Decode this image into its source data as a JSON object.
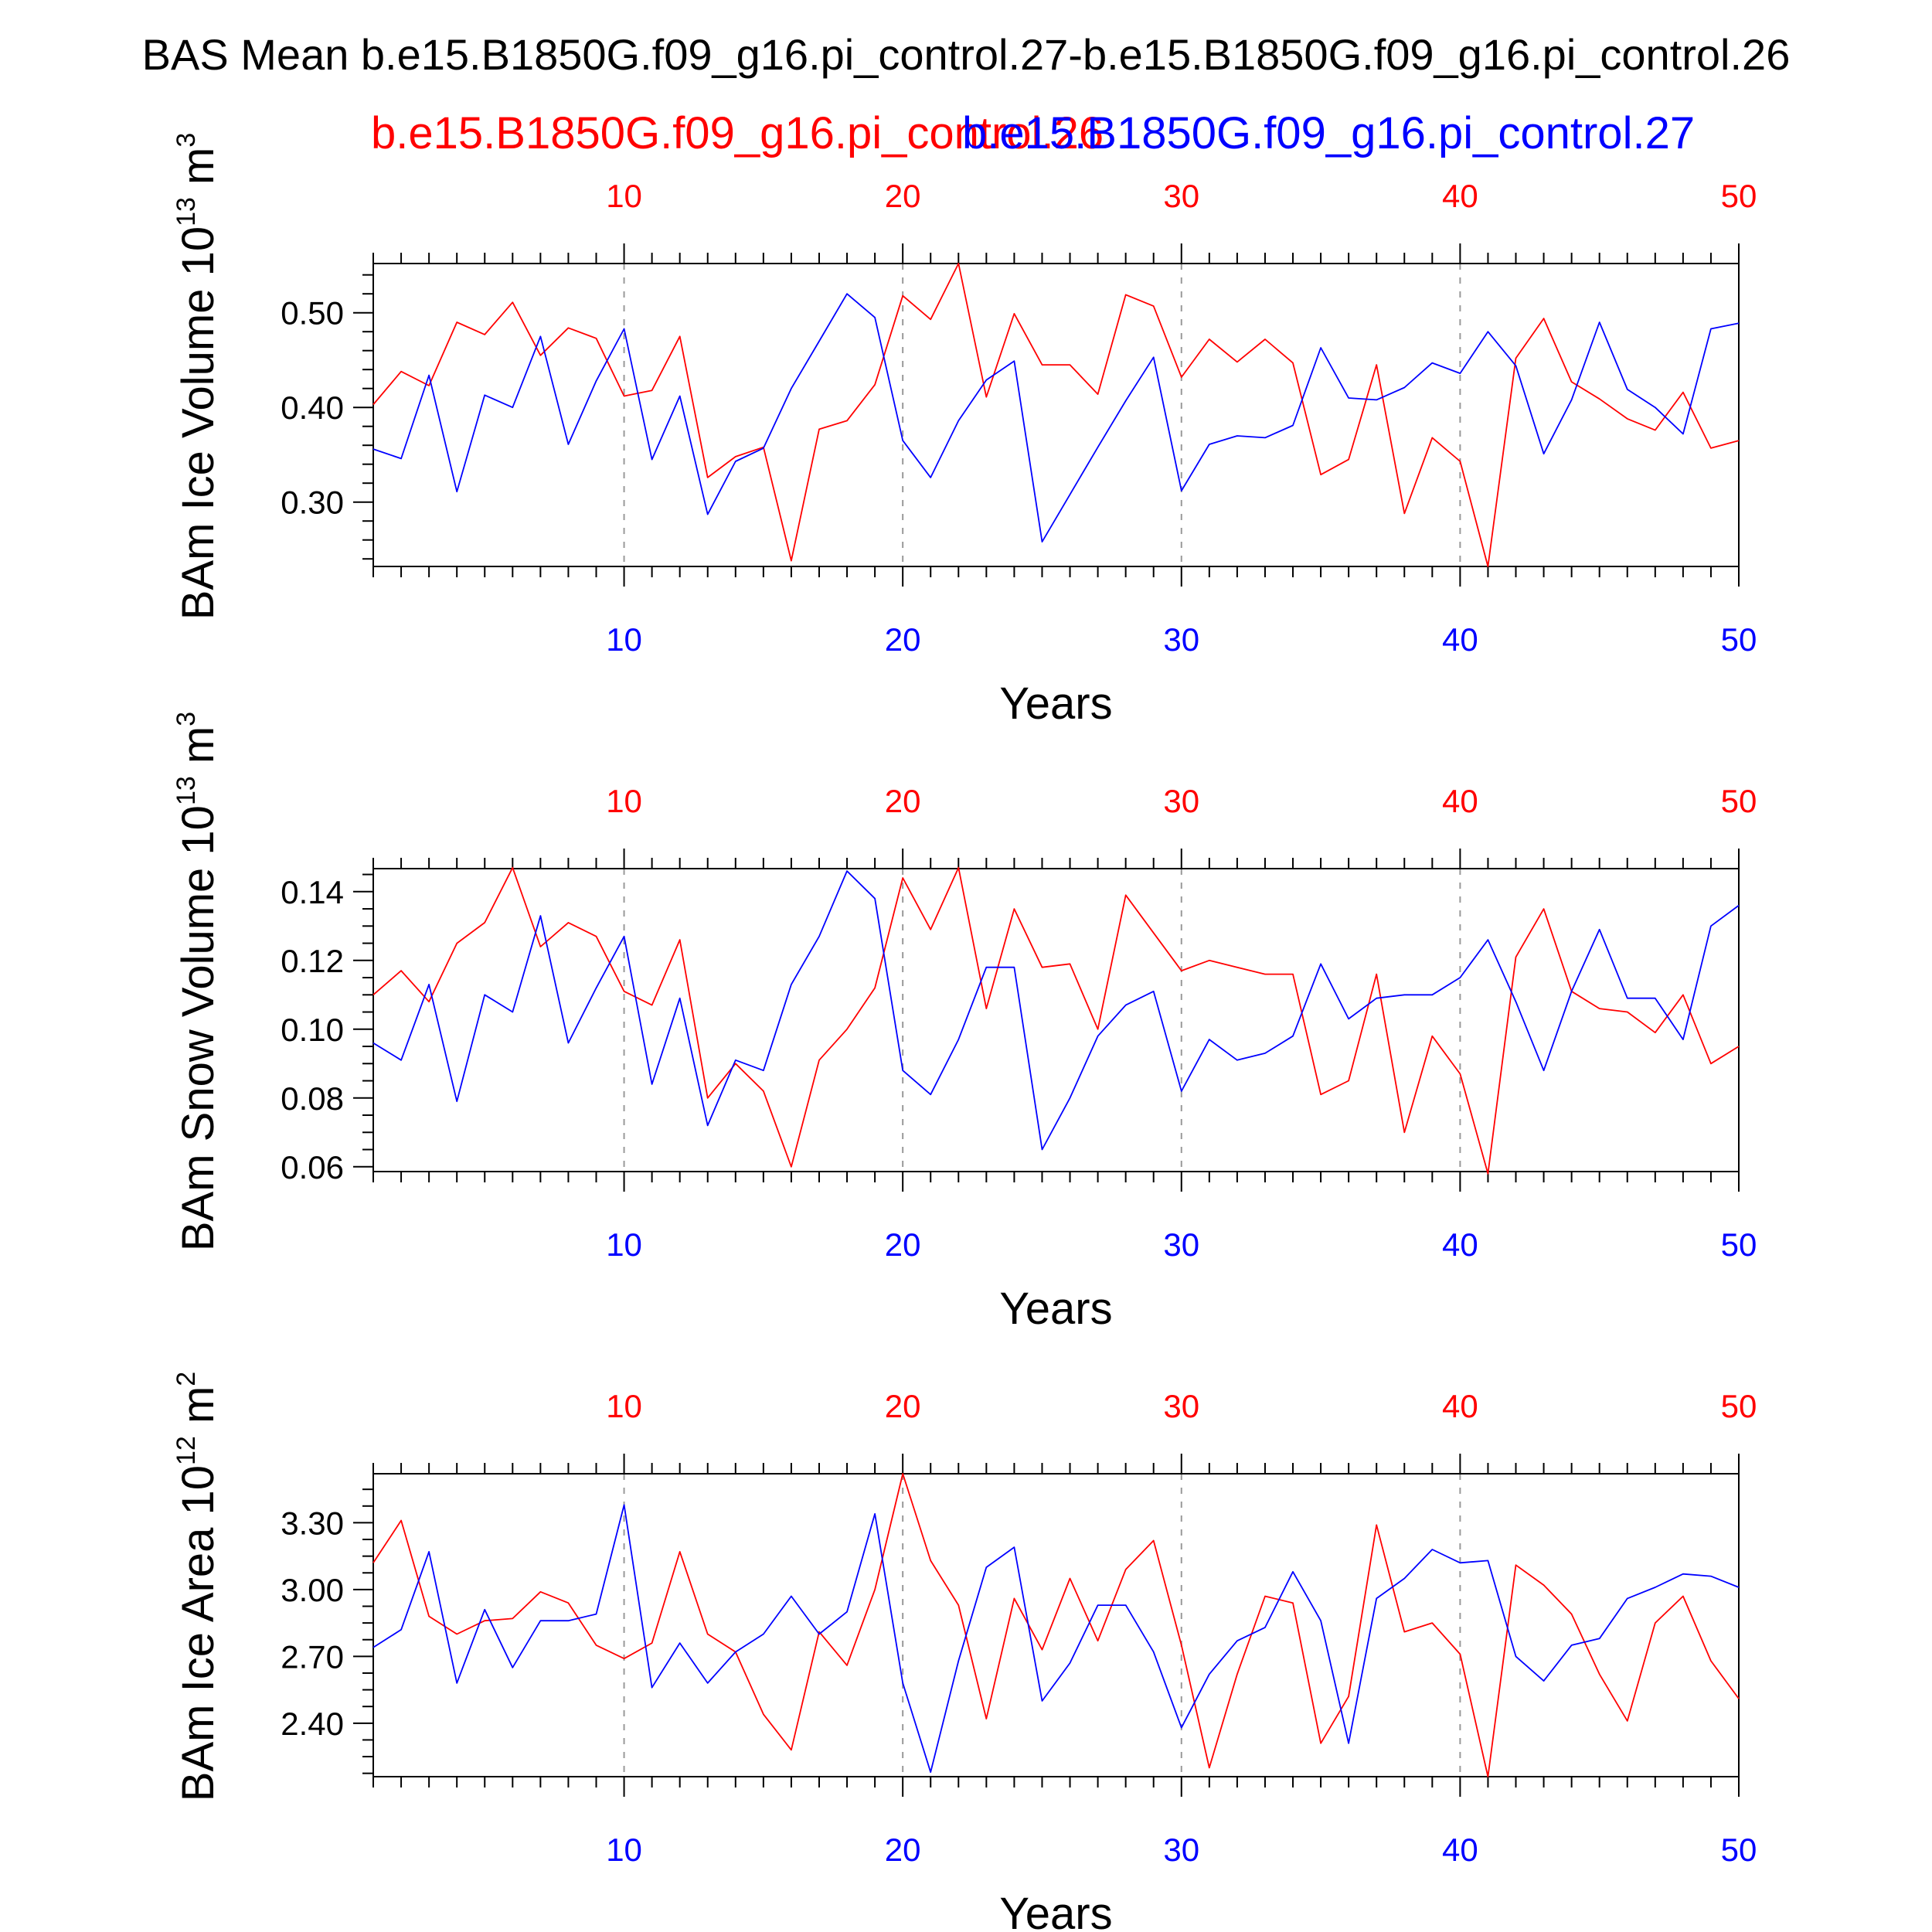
{
  "title": "BAS Mean b.e15.B1850G.f09_g16.pi_control.27-b.e15.B1850G.f09_g16.pi_control.26",
  "legend": {
    "red_label": "b.e15.B1850G.f09_g16.pi_control.26",
    "blue_label": "b.e15.B1850G.f09_g16.pi_control.27"
  },
  "colors": {
    "red": "#ff0000",
    "blue": "#0000ff",
    "axis": "#000000",
    "grid": "#999999"
  },
  "chart_data": [
    {
      "type": "line",
      "ylabel_prefix": "BAm Ice Volume 10",
      "ylabel_exp": "13",
      "ylabel_unit": " m",
      "ylabel_unit_exp": "3",
      "xlabel": "Years",
      "xlim": [
        1,
        50
      ],
      "ylim": [
        0.232,
        0.552
      ],
      "xticks": [
        10,
        20,
        30,
        40,
        50
      ],
      "yticks": [
        0.3,
        0.4,
        0.5
      ],
      "ytick_labels": [
        "0.30",
        "0.40",
        "0.50"
      ],
      "yminor_step": 0.02,
      "grid": "vertical dashed at major x ticks",
      "series": [
        {
          "name": "b.e15.B1850G.f09_g16.pi_control.26",
          "color": "#ff0000",
          "values": [
            0.403,
            0.438,
            0.423,
            0.49,
            0.477,
            0.511,
            0.455,
            0.484,
            0.473,
            0.412,
            0.418,
            0.475,
            0.326,
            0.348,
            0.358,
            0.238,
            0.377,
            0.386,
            0.424,
            0.518,
            0.493,
            0.552,
            0.411,
            0.499,
            0.445,
            0.445,
            0.414,
            0.519,
            0.507,
            0.432,
            0.472,
            0.448,
            0.472,
            0.447,
            0.329,
            0.345,
            0.445,
            0.288,
            0.368,
            0.343,
            0.232,
            0.452,
            0.494,
            0.427,
            0.409,
            0.388,
            0.376,
            0.416,
            0.357,
            0.365
          ]
        },
        {
          "name": "b.e15.B1850G.f09_g16.pi_control.27",
          "color": "#0000ff",
          "values": [
            0.356,
            0.346,
            0.434,
            0.311,
            0.413,
            0.4,
            0.475,
            0.361,
            0.428,
            0.483,
            0.345,
            0.412,
            0.287,
            0.343,
            0.357,
            0.42,
            0.47,
            0.52,
            0.495,
            0.365,
            0.326,
            0.386,
            0.429,
            0.449,
            0.258,
            0.308,
            0.358,
            0.407,
            0.453,
            0.312,
            0.361,
            0.37,
            0.368,
            0.381,
            0.463,
            0.41,
            0.408,
            0.421,
            0.447,
            0.436,
            0.48,
            0.444,
            0.351,
            0.408,
            0.49,
            0.419,
            0.4,
            0.372,
            0.483,
            0.489
          ]
        }
      ]
    },
    {
      "type": "line",
      "ylabel_prefix": "BAm Snow Volume 10",
      "ylabel_exp": "13",
      "ylabel_unit": " m",
      "ylabel_unit_exp": "3",
      "xlabel": "Years",
      "xlim": [
        1,
        50
      ],
      "ylim": [
        0.0586,
        0.1467
      ],
      "xticks": [
        10,
        20,
        30,
        40,
        50
      ],
      "yticks": [
        0.06,
        0.08,
        0.1,
        0.12,
        0.14
      ],
      "ytick_labels": [
        "0.06",
        "0.08",
        "0.10",
        "0.12",
        "0.14"
      ],
      "yminor_step": 0.005,
      "grid": "vertical dashed at major x ticks",
      "series": [
        {
          "name": "b.e15.B1850G.f09_g16.pi_control.26",
          "color": "#ff0000",
          "values": [
            0.11,
            0.117,
            0.108,
            0.125,
            0.131,
            0.147,
            0.124,
            0.131,
            0.127,
            0.111,
            0.107,
            0.126,
            0.08,
            0.09,
            0.082,
            0.06,
            0.091,
            0.1,
            0.112,
            0.144,
            0.129,
            0.147,
            0.106,
            0.135,
            0.118,
            0.119,
            0.1,
            0.139,
            0.128,
            0.117,
            0.12,
            0.118,
            0.116,
            0.116,
            0.081,
            0.085,
            0.116,
            0.07,
            0.098,
            0.087,
            0.058,
            0.121,
            0.135,
            0.111,
            0.106,
            0.105,
            0.099,
            0.11,
            0.09,
            0.095
          ]
        },
        {
          "name": "b.e15.B1850G.f09_g16.pi_control.27",
          "color": "#0000ff",
          "values": [
            0.096,
            0.091,
            0.113,
            0.079,
            0.11,
            0.105,
            0.133,
            0.096,
            0.112,
            0.127,
            0.084,
            0.109,
            0.072,
            0.091,
            0.088,
            0.113,
            0.127,
            0.146,
            0.138,
            0.088,
            0.081,
            0.097,
            0.118,
            0.118,
            0.065,
            0.08,
            0.098,
            0.107,
            0.111,
            0.082,
            0.097,
            0.091,
            0.093,
            0.098,
            0.119,
            0.103,
            0.109,
            0.11,
            0.11,
            0.115,
            0.126,
            0.108,
            0.088,
            0.111,
            0.129,
            0.109,
            0.109,
            0.097,
            0.13,
            0.136
          ]
        }
      ]
    },
    {
      "type": "line",
      "ylabel_prefix": "BAm Ice Area 10",
      "ylabel_exp": "12",
      "ylabel_unit": " m",
      "ylabel_unit_exp": "2",
      "xlabel": "Years",
      "xlim": [
        1,
        50
      ],
      "ylim": [
        2.16,
        3.52
      ],
      "xticks": [
        10,
        20,
        30,
        40,
        50
      ],
      "yticks": [
        2.4,
        2.7,
        3.0,
        3.3
      ],
      "ytick_labels": [
        "2.40",
        "2.70",
        "3.00",
        "3.30"
      ],
      "yminor_step": 0.075,
      "grid": "vertical dashed at major x ticks",
      "series": [
        {
          "name": "b.e15.B1850G.f09_g16.pi_control.26",
          "color": "#ff0000",
          "values": [
            3.12,
            3.31,
            2.88,
            2.8,
            2.86,
            2.87,
            2.99,
            2.94,
            2.75,
            2.69,
            2.76,
            3.17,
            2.8,
            2.72,
            2.44,
            2.28,
            2.81,
            2.66,
            3.0,
            3.52,
            3.13,
            2.93,
            2.42,
            2.96,
            2.73,
            3.05,
            2.77,
            3.09,
            3.22,
            2.75,
            2.2,
            2.62,
            2.97,
            2.94,
            2.31,
            2.52,
            3.29,
            2.81,
            2.85,
            2.71,
            2.16,
            3.11,
            3.02,
            2.89,
            2.62,
            2.41,
            2.85,
            2.97,
            2.68,
            2.51
          ]
        },
        {
          "name": "b.e15.B1850G.f09_g16.pi_control.27",
          "color": "#0000ff",
          "values": [
            2.74,
            2.82,
            3.17,
            2.58,
            2.91,
            2.65,
            2.86,
            2.86,
            2.89,
            3.38,
            2.56,
            2.76,
            2.58,
            2.72,
            2.8,
            2.97,
            2.8,
            2.9,
            3.34,
            2.58,
            2.18,
            2.68,
            3.1,
            3.19,
            2.5,
            2.67,
            2.93,
            2.93,
            2.72,
            2.38,
            2.62,
            2.77,
            2.83,
            3.08,
            2.86,
            2.31,
            2.96,
            3.05,
            3.18,
            3.12,
            3.13,
            2.7,
            2.59,
            2.75,
            2.78,
            2.96,
            3.01,
            3.07,
            3.06,
            3.01
          ]
        }
      ]
    }
  ]
}
